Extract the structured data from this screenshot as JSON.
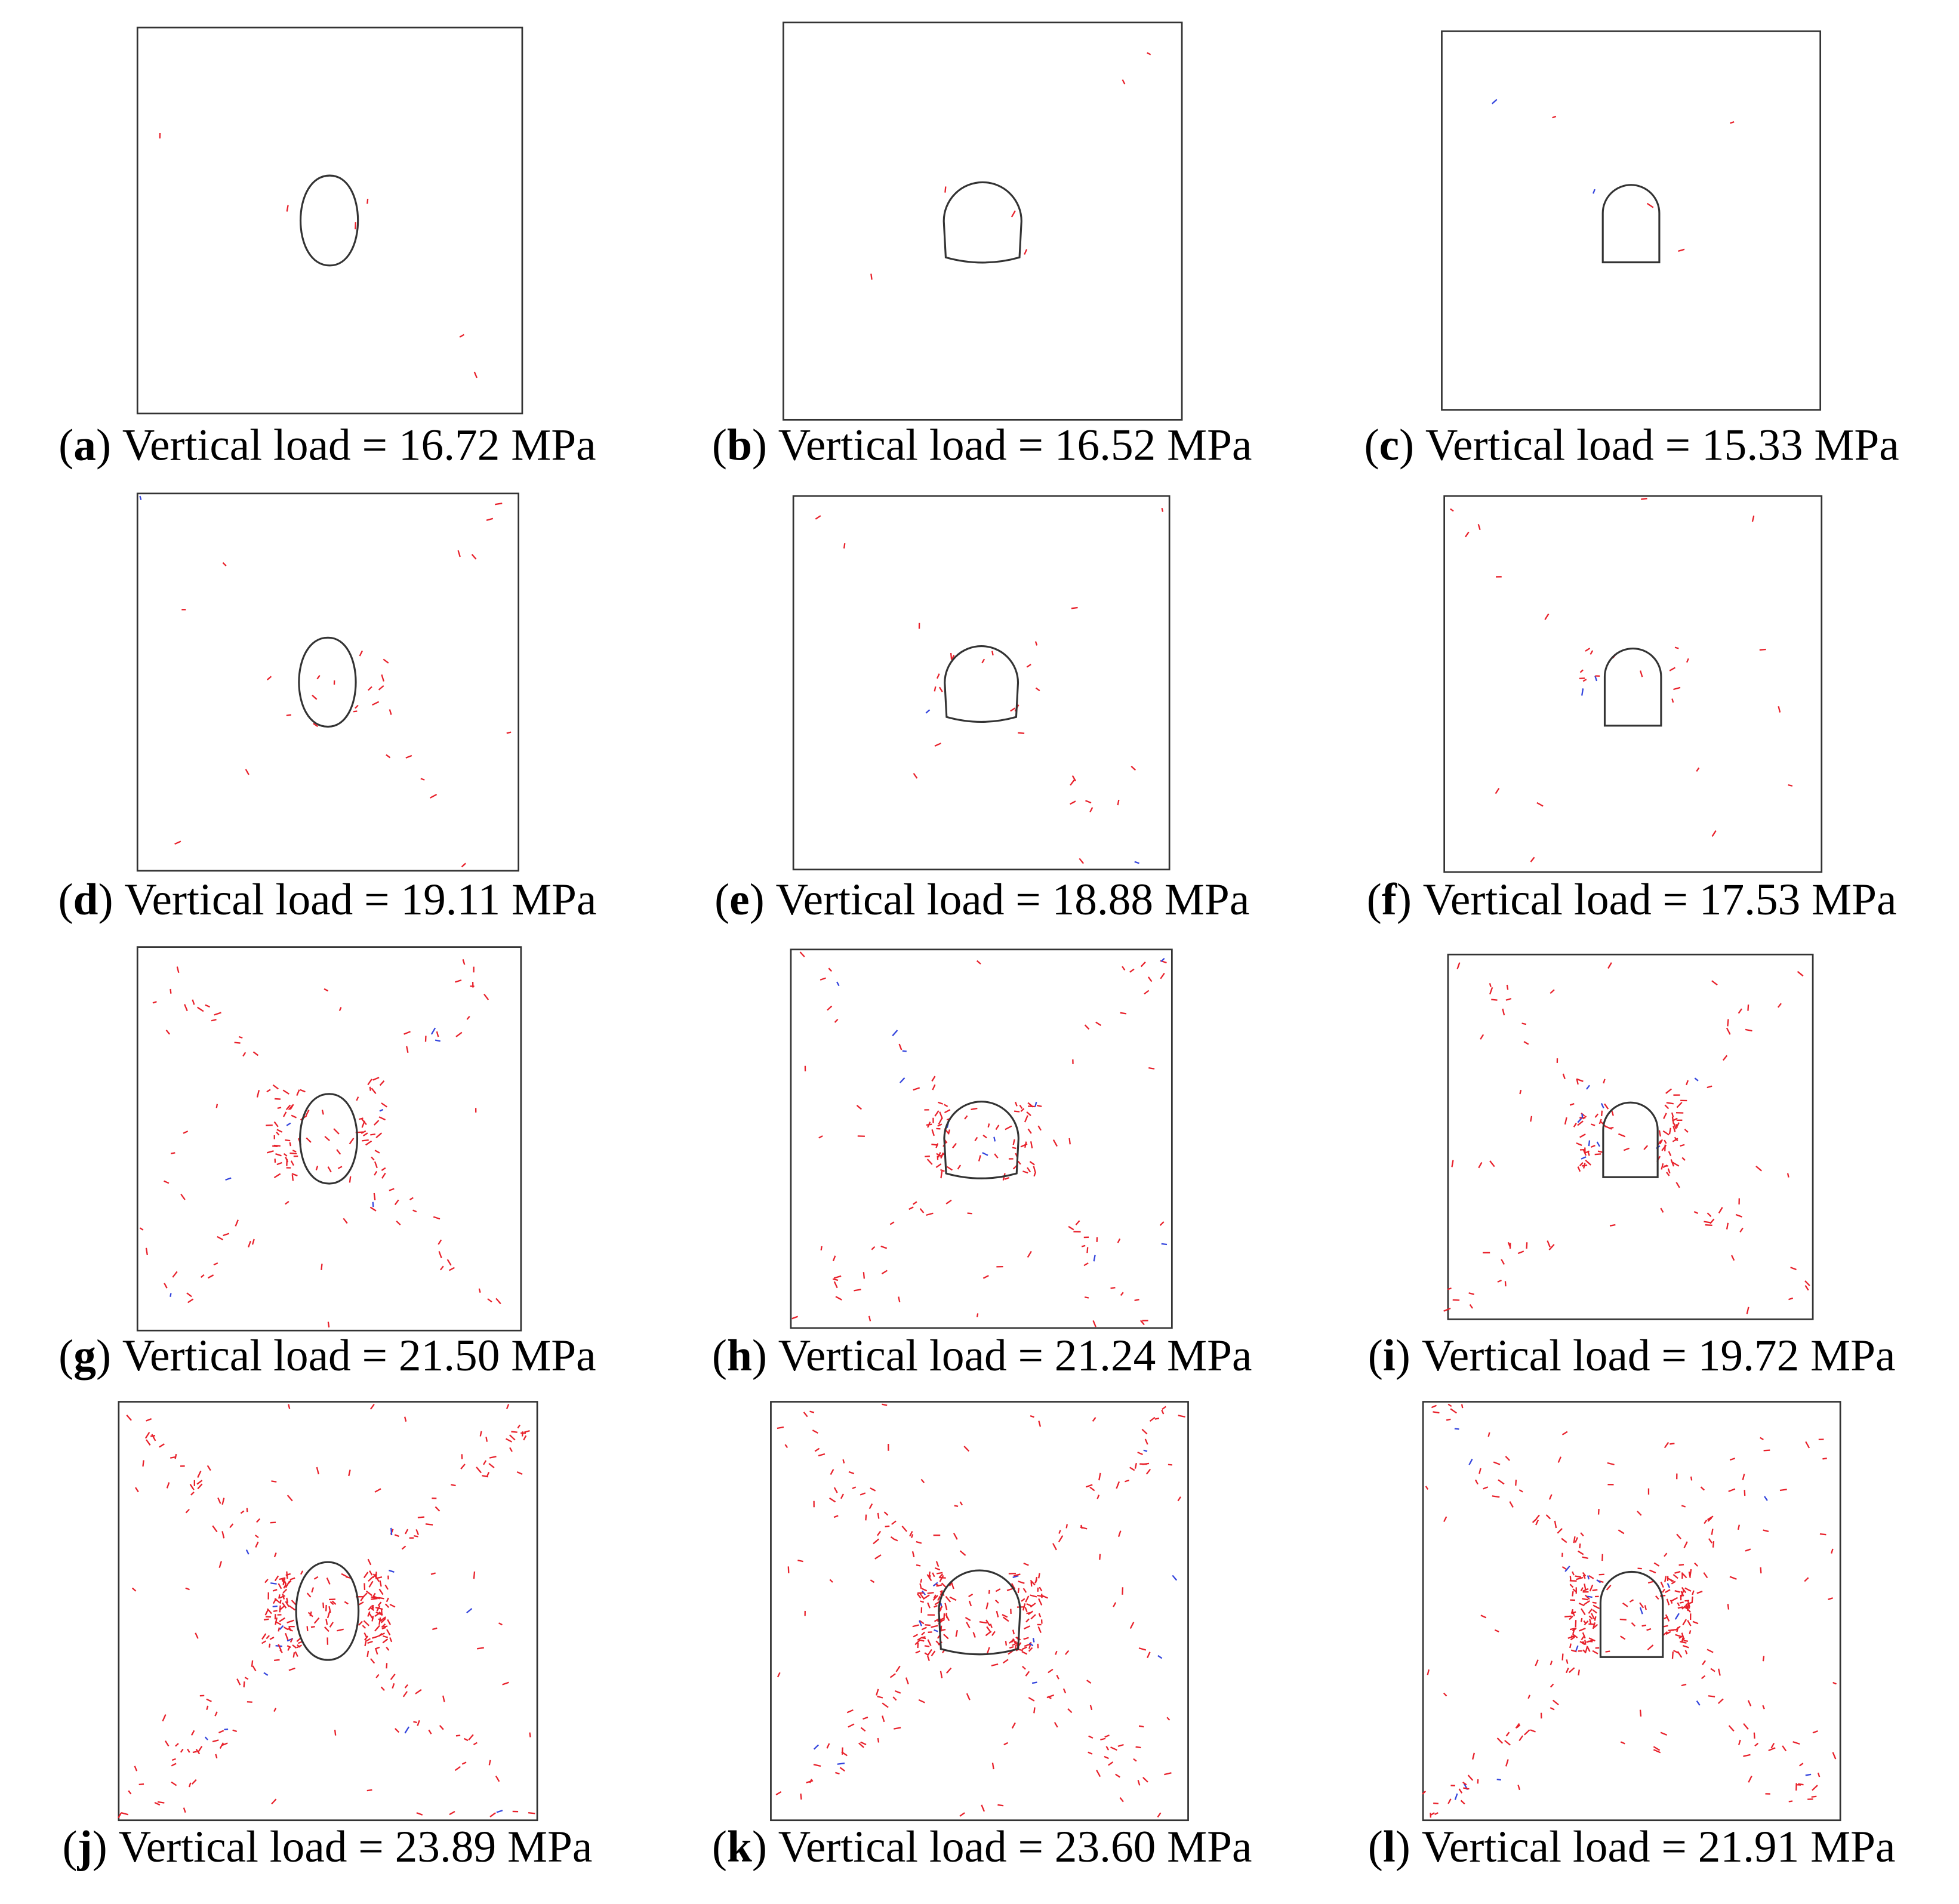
{
  "panels": [
    {
      "label": "(a)",
      "caption": "Vertical load = 16.72 MPa"
    },
    {
      "label": "(b)",
      "caption": "Vertical load = 16.52 MPa"
    },
    {
      "label": "(c)",
      "caption": "Vertical load = 15.33 MPa"
    },
    {
      "label": "(d)",
      "caption": "Vertical load = 19.11 MPa"
    },
    {
      "label": "(e)",
      "caption": "Vertical load = 18.88 MPa"
    },
    {
      "label": "(f)",
      "caption": "Vertical load = 17.53 MPa"
    },
    {
      "label": "(g)",
      "caption": "Vertical load = 21.50 MPa"
    },
    {
      "label": "(h)",
      "caption": "Vertical load = 21.24 MPa"
    },
    {
      "label": "(i)",
      "caption": "Vertical load = 19.72 MPa"
    },
    {
      "label": "(j)",
      "caption": "Vertical load = 23.89 MPa"
    },
    {
      "label": "(k)",
      "caption": "Vertical load = 23.60 MPa"
    },
    {
      "label": "(l)",
      "caption": "Vertical load = 21.91 MPa"
    }
  ]
}
